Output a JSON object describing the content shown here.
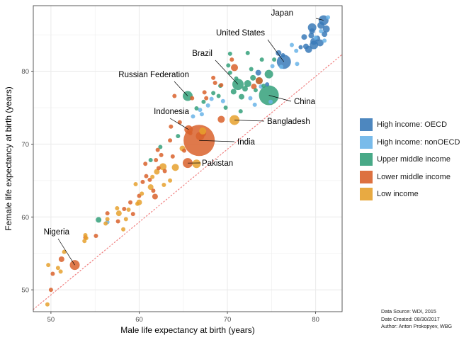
{
  "chart_data": {
    "type": "scatter",
    "xlabel": "Male life expectancy at birth (years)",
    "ylabel": "Female life expectancy at birth (years)",
    "xlim": [
      48,
      83
    ],
    "ylim": [
      47,
      89
    ],
    "x_ticks": [
      50,
      60,
      70,
      80
    ],
    "y_ticks": [
      50,
      60,
      70,
      80
    ],
    "grid": true,
    "reference_line": {
      "style": "dotted",
      "color": "#f08080",
      "from": [
        48,
        47.3
      ],
      "to": [
        83,
        82.3
      ]
    },
    "legend_position": "right",
    "groups": [
      {
        "name": "High income: OECD",
        "color": "#3a7ab8"
      },
      {
        "name": "High income: nonOECD",
        "color": "#6ab4e8"
      },
      {
        "name": "Upper middle income",
        "color": "#34a07a"
      },
      {
        "name": "Lower middle income",
        "color": "#d9622b"
      },
      {
        "name": "Low income",
        "color": "#e6a12e"
      }
    ],
    "points": [
      {
        "x": 80.9,
        "y": 87.0,
        "g": 0,
        "s": 7
      },
      {
        "x": 80.6,
        "y": 86.3,
        "g": 0,
        "s": 5
      },
      {
        "x": 81.2,
        "y": 85.8,
        "g": 0,
        "s": 5
      },
      {
        "x": 79.6,
        "y": 85.5,
        "g": 0,
        "s": 4
      },
      {
        "x": 79.6,
        "y": 86.0,
        "g": 0,
        "s": 6
      },
      {
        "x": 79.8,
        "y": 84.1,
        "g": 0,
        "s": 5
      },
      {
        "x": 80.2,
        "y": 84.5,
        "g": 0,
        "s": 4
      },
      {
        "x": 80.5,
        "y": 83.9,
        "g": 0,
        "s": 5
      },
      {
        "x": 79.8,
        "y": 83.6,
        "g": 0,
        "s": 6
      },
      {
        "x": 78.7,
        "y": 84.7,
        "g": 0,
        "s": 4
      },
      {
        "x": 79.2,
        "y": 83.0,
        "g": 0,
        "s": 5
      },
      {
        "x": 78.9,
        "y": 83.4,
        "g": 0,
        "s": 4
      },
      {
        "x": 81.0,
        "y": 85.1,
        "g": 0,
        "s": 4
      },
      {
        "x": 79.5,
        "y": 84.9,
        "g": 0,
        "s": 4
      },
      {
        "x": 78.3,
        "y": 83.3,
        "g": 0,
        "s": 3
      },
      {
        "x": 76.4,
        "y": 81.3,
        "g": 0,
        "s": 10
      },
      {
        "x": 75.8,
        "y": 82.5,
        "g": 0,
        "s": 4
      },
      {
        "x": 73.5,
        "y": 79.8,
        "g": 0,
        "s": 4
      },
      {
        "x": 76.3,
        "y": 82.2,
        "g": 0,
        "s": 3
      },
      {
        "x": 74.5,
        "y": 78.2,
        "g": 0,
        "s": 3
      },
      {
        "x": 81.4,
        "y": 87.4,
        "g": 1,
        "s": 3
      },
      {
        "x": 80.6,
        "y": 85.5,
        "g": 1,
        "s": 3
      },
      {
        "x": 80.0,
        "y": 84.6,
        "g": 1,
        "s": 3
      },
      {
        "x": 81.0,
        "y": 84.2,
        "g": 1,
        "s": 3
      },
      {
        "x": 77.8,
        "y": 82.8,
        "g": 1,
        "s": 3
      },
      {
        "x": 77.3,
        "y": 83.6,
        "g": 1,
        "s": 3
      },
      {
        "x": 76.1,
        "y": 80.6,
        "g": 1,
        "s": 3
      },
      {
        "x": 75.1,
        "y": 80.7,
        "g": 1,
        "s": 3
      },
      {
        "x": 77.9,
        "y": 81.0,
        "g": 1,
        "s": 3
      },
      {
        "x": 73.8,
        "y": 77.9,
        "g": 1,
        "s": 3
      },
      {
        "x": 72.6,
        "y": 76.3,
        "g": 1,
        "s": 3
      },
      {
        "x": 74.9,
        "y": 75.8,
        "g": 1,
        "s": 3
      },
      {
        "x": 73.1,
        "y": 75.4,
        "g": 1,
        "s": 3
      },
      {
        "x": 66.9,
        "y": 74.7,
        "g": 1,
        "s": 3
      },
      {
        "x": 68.2,
        "y": 76.2,
        "g": 1,
        "s": 3
      },
      {
        "x": 67.8,
        "y": 75.3,
        "g": 1,
        "s": 3
      },
      {
        "x": 69.5,
        "y": 75.9,
        "g": 1,
        "s": 3
      },
      {
        "x": 56.4,
        "y": 59.3,
        "g": 1,
        "s": 3
      },
      {
        "x": 66.1,
        "y": 73.8,
        "g": 1,
        "s": 3
      },
      {
        "x": 67.1,
        "y": 74.1,
        "g": 1,
        "s": 3
      },
      {
        "x": 74.7,
        "y": 76.7,
        "g": 2,
        "s": 14
      },
      {
        "x": 74.7,
        "y": 79.6,
        "g": 2,
        "s": 6
      },
      {
        "x": 71.2,
        "y": 78.2,
        "g": 2,
        "s": 8
      },
      {
        "x": 65.5,
        "y": 76.6,
        "g": 2,
        "s": 7
      },
      {
        "x": 72.3,
        "y": 78.3,
        "g": 2,
        "s": 5
      },
      {
        "x": 73.6,
        "y": 78.7,
        "g": 2,
        "s": 5
      },
      {
        "x": 72.0,
        "y": 77.6,
        "g": 2,
        "s": 4
      },
      {
        "x": 71.6,
        "y": 76.5,
        "g": 2,
        "s": 4
      },
      {
        "x": 70.7,
        "y": 77.2,
        "g": 2,
        "s": 4
      },
      {
        "x": 72.9,
        "y": 79.1,
        "g": 2,
        "s": 4
      },
      {
        "x": 69.2,
        "y": 78.0,
        "g": 2,
        "s": 3
      },
      {
        "x": 71.0,
        "y": 79.0,
        "g": 2,
        "s": 3
      },
      {
        "x": 73.2,
        "y": 77.4,
        "g": 2,
        "s": 3
      },
      {
        "x": 69.8,
        "y": 75.0,
        "g": 2,
        "s": 3
      },
      {
        "x": 71.5,
        "y": 74.5,
        "g": 2,
        "s": 3
      },
      {
        "x": 69.0,
        "y": 76.6,
        "g": 2,
        "s": 3
      },
      {
        "x": 70.3,
        "y": 79.8,
        "g": 2,
        "s": 3
      },
      {
        "x": 72.7,
        "y": 80.3,
        "g": 2,
        "s": 3
      },
      {
        "x": 73.9,
        "y": 81.6,
        "g": 2,
        "s": 3
      },
      {
        "x": 70.1,
        "y": 80.8,
        "g": 2,
        "s": 3
      },
      {
        "x": 68.4,
        "y": 77.0,
        "g": 2,
        "s": 3
      },
      {
        "x": 66.5,
        "y": 74.9,
        "g": 2,
        "s": 3
      },
      {
        "x": 67.3,
        "y": 75.8,
        "g": 2,
        "s": 3
      },
      {
        "x": 62.4,
        "y": 69.6,
        "g": 2,
        "s": 3
      },
      {
        "x": 64.4,
        "y": 71.1,
        "g": 2,
        "s": 3
      },
      {
        "x": 61.3,
        "y": 67.8,
        "g": 2,
        "s": 3
      },
      {
        "x": 55.4,
        "y": 59.6,
        "g": 2,
        "s": 4
      },
      {
        "x": 70.3,
        "y": 82.4,
        "g": 2,
        "s": 3
      },
      {
        "x": 72.3,
        "y": 82.5,
        "g": 2,
        "s": 3
      },
      {
        "x": 75.3,
        "y": 81.6,
        "g": 2,
        "s": 3
      },
      {
        "x": 74.1,
        "y": 78.0,
        "g": 2,
        "s": 3
      },
      {
        "x": 66.8,
        "y": 70.5,
        "g": 3,
        "s": 22
      },
      {
        "x": 65.6,
        "y": 72.0,
        "g": 3,
        "s": 6
      },
      {
        "x": 66.9,
        "y": 71.1,
        "g": 3,
        "s": 6
      },
      {
        "x": 67.2,
        "y": 71.5,
        "g": 3,
        "s": 5
      },
      {
        "x": 65.5,
        "y": 67.4,
        "g": 3,
        "s": 7
      },
      {
        "x": 52.7,
        "y": 53.4,
        "g": 3,
        "s": 7
      },
      {
        "x": 70.8,
        "y": 80.5,
        "g": 3,
        "s": 5
      },
      {
        "x": 69.3,
        "y": 73.4,
        "g": 3,
        "s": 5
      },
      {
        "x": 73.6,
        "y": 78.7,
        "g": 3,
        "s": 5
      },
      {
        "x": 73.0,
        "y": 77.9,
        "g": 3,
        "s": 4
      },
      {
        "x": 64.0,
        "y": 76.6,
        "g": 3,
        "s": 3
      },
      {
        "x": 66.0,
        "y": 76.3,
        "g": 3,
        "s": 3
      },
      {
        "x": 67.4,
        "y": 77.1,
        "g": 3,
        "s": 3
      },
      {
        "x": 68.4,
        "y": 79.1,
        "g": 3,
        "s": 3
      },
      {
        "x": 69.3,
        "y": 78.1,
        "g": 3,
        "s": 3
      },
      {
        "x": 70.5,
        "y": 81.6,
        "g": 3,
        "s": 3
      },
      {
        "x": 63.6,
        "y": 72.4,
        "g": 3,
        "s": 3
      },
      {
        "x": 63.5,
        "y": 70.5,
        "g": 3,
        "s": 3
      },
      {
        "x": 62.5,
        "y": 68.5,
        "g": 3,
        "s": 3
      },
      {
        "x": 61.9,
        "y": 67.8,
        "g": 3,
        "s": 3
      },
      {
        "x": 60.4,
        "y": 64.8,
        "g": 3,
        "s": 3
      },
      {
        "x": 59.0,
        "y": 62.0,
        "g": 3,
        "s": 3
      },
      {
        "x": 61.6,
        "y": 63.6,
        "g": 3,
        "s": 3
      },
      {
        "x": 61.8,
        "y": 62.8,
        "g": 3,
        "s": 4
      },
      {
        "x": 60.8,
        "y": 65.6,
        "g": 3,
        "s": 3
      },
      {
        "x": 59.3,
        "y": 60.4,
        "g": 3,
        "s": 3
      },
      {
        "x": 56.4,
        "y": 60.5,
        "g": 3,
        "s": 3
      },
      {
        "x": 53.9,
        "y": 57.2,
        "g": 3,
        "s": 3
      },
      {
        "x": 55.1,
        "y": 57.4,
        "g": 3,
        "s": 3
      },
      {
        "x": 51.2,
        "y": 54.2,
        "g": 3,
        "s": 4
      },
      {
        "x": 50.2,
        "y": 52.2,
        "g": 3,
        "s": 3
      },
      {
        "x": 50.0,
        "y": 50.0,
        "g": 3,
        "s": 3
      },
      {
        "x": 58.3,
        "y": 61.1,
        "g": 3,
        "s": 3
      },
      {
        "x": 60.0,
        "y": 62.9,
        "g": 3,
        "s": 3
      },
      {
        "x": 61.2,
        "y": 65.1,
        "g": 3,
        "s": 3
      },
      {
        "x": 62.9,
        "y": 66.3,
        "g": 3,
        "s": 3
      },
      {
        "x": 67.6,
        "y": 76.3,
        "g": 3,
        "s": 3
      },
      {
        "x": 68.6,
        "y": 78.4,
        "g": 3,
        "s": 3
      },
      {
        "x": 65.8,
        "y": 71.5,
        "g": 3,
        "s": 3
      },
      {
        "x": 64.6,
        "y": 73.0,
        "g": 3,
        "s": 3
      },
      {
        "x": 63.8,
        "y": 68.3,
        "g": 3,
        "s": 3
      },
      {
        "x": 60.7,
        "y": 67.3,
        "g": 3,
        "s": 3
      },
      {
        "x": 62.1,
        "y": 69.2,
        "g": 3,
        "s": 3
      },
      {
        "x": 57.6,
        "y": 59.4,
        "g": 3,
        "s": 3
      },
      {
        "x": 62.2,
        "y": 66.7,
        "g": 3,
        "s": 3
      },
      {
        "x": 65.1,
        "y": 69.1,
        "g": 3,
        "s": 3
      },
      {
        "x": 70.8,
        "y": 73.3,
        "g": 4,
        "s": 7
      },
      {
        "x": 66.5,
        "y": 67.3,
        "g": 4,
        "s": 6
      },
      {
        "x": 67.2,
        "y": 71.8,
        "g": 4,
        "s": 5
      },
      {
        "x": 64.9,
        "y": 69.4,
        "g": 4,
        "s": 4
      },
      {
        "x": 62.7,
        "y": 66.9,
        "g": 4,
        "s": 5
      },
      {
        "x": 62.0,
        "y": 66.2,
        "g": 4,
        "s": 4
      },
      {
        "x": 64.1,
        "y": 66.8,
        "g": 4,
        "s": 5
      },
      {
        "x": 61.3,
        "y": 64.1,
        "g": 4,
        "s": 4
      },
      {
        "x": 60.0,
        "y": 62.0,
        "g": 4,
        "s": 4
      },
      {
        "x": 59.8,
        "y": 61.8,
        "g": 4,
        "s": 3
      },
      {
        "x": 58.8,
        "y": 61.0,
        "g": 4,
        "s": 3
      },
      {
        "x": 57.7,
        "y": 60.5,
        "g": 4,
        "s": 4
      },
      {
        "x": 57.5,
        "y": 61.2,
        "g": 4,
        "s": 3
      },
      {
        "x": 58.5,
        "y": 59.7,
        "g": 4,
        "s": 3
      },
      {
        "x": 58.2,
        "y": 58.3,
        "g": 4,
        "s": 3
      },
      {
        "x": 56.4,
        "y": 59.7,
        "g": 4,
        "s": 3
      },
      {
        "x": 56.2,
        "y": 59.1,
        "g": 4,
        "s": 3
      },
      {
        "x": 53.9,
        "y": 57.5,
        "g": 4,
        "s": 3
      },
      {
        "x": 53.8,
        "y": 56.7,
        "g": 4,
        "s": 3
      },
      {
        "x": 54.0,
        "y": 57.1,
        "g": 4,
        "s": 3
      },
      {
        "x": 51.5,
        "y": 55.2,
        "g": 4,
        "s": 3
      },
      {
        "x": 50.8,
        "y": 53.0,
        "g": 4,
        "s": 3
      },
      {
        "x": 51.1,
        "y": 52.5,
        "g": 4,
        "s": 3
      },
      {
        "x": 49.7,
        "y": 53.4,
        "g": 4,
        "s": 3
      },
      {
        "x": 49.6,
        "y": 48.0,
        "g": 4,
        "s": 3
      },
      {
        "x": 61.5,
        "y": 65.5,
        "g": 4,
        "s": 3
      },
      {
        "x": 62.8,
        "y": 64.4,
        "g": 4,
        "s": 3
      },
      {
        "x": 63.5,
        "y": 65.0,
        "g": 4,
        "s": 3
      },
      {
        "x": 59.6,
        "y": 64.5,
        "g": 4,
        "s": 3
      },
      {
        "x": 60.3,
        "y": 63.2,
        "g": 4,
        "s": 3
      }
    ],
    "annotations": [
      {
        "label": "Japan",
        "x": 80.9,
        "y": 87.0
      },
      {
        "label": "United States",
        "x": 76.4,
        "y": 81.3
      },
      {
        "label": "Brazil",
        "x": 71.2,
        "y": 78.2
      },
      {
        "label": "Russian Federation",
        "x": 65.5,
        "y": 76.6
      },
      {
        "label": "China",
        "x": 74.7,
        "y": 76.7
      },
      {
        "label": "Indonesia",
        "x": 65.6,
        "y": 72.0
      },
      {
        "label": "Bangladesh",
        "x": 70.8,
        "y": 73.3
      },
      {
        "label": "India",
        "x": 66.8,
        "y": 70.5
      },
      {
        "label": "Pakistan",
        "x": 65.5,
        "y": 67.4
      },
      {
        "label": "Nigeria",
        "x": 52.7,
        "y": 53.4
      }
    ]
  },
  "legend": {
    "items": [
      {
        "label": "High income: OECD",
        "color": "#3a7ab8"
      },
      {
        "label": "High income: nonOECD",
        "color": "#6ab4e8"
      },
      {
        "label": "Upper middle income",
        "color": "#34a07a"
      },
      {
        "label": "Lower middle income",
        "color": "#d9622b"
      },
      {
        "label": "Low income",
        "color": "#e6a12e"
      }
    ]
  },
  "caption": {
    "source": "Data Source: WDI, 2015",
    "date": "Date Created: 08/30/2017",
    "author": "Author: Anton Prokopyev, WBG"
  }
}
